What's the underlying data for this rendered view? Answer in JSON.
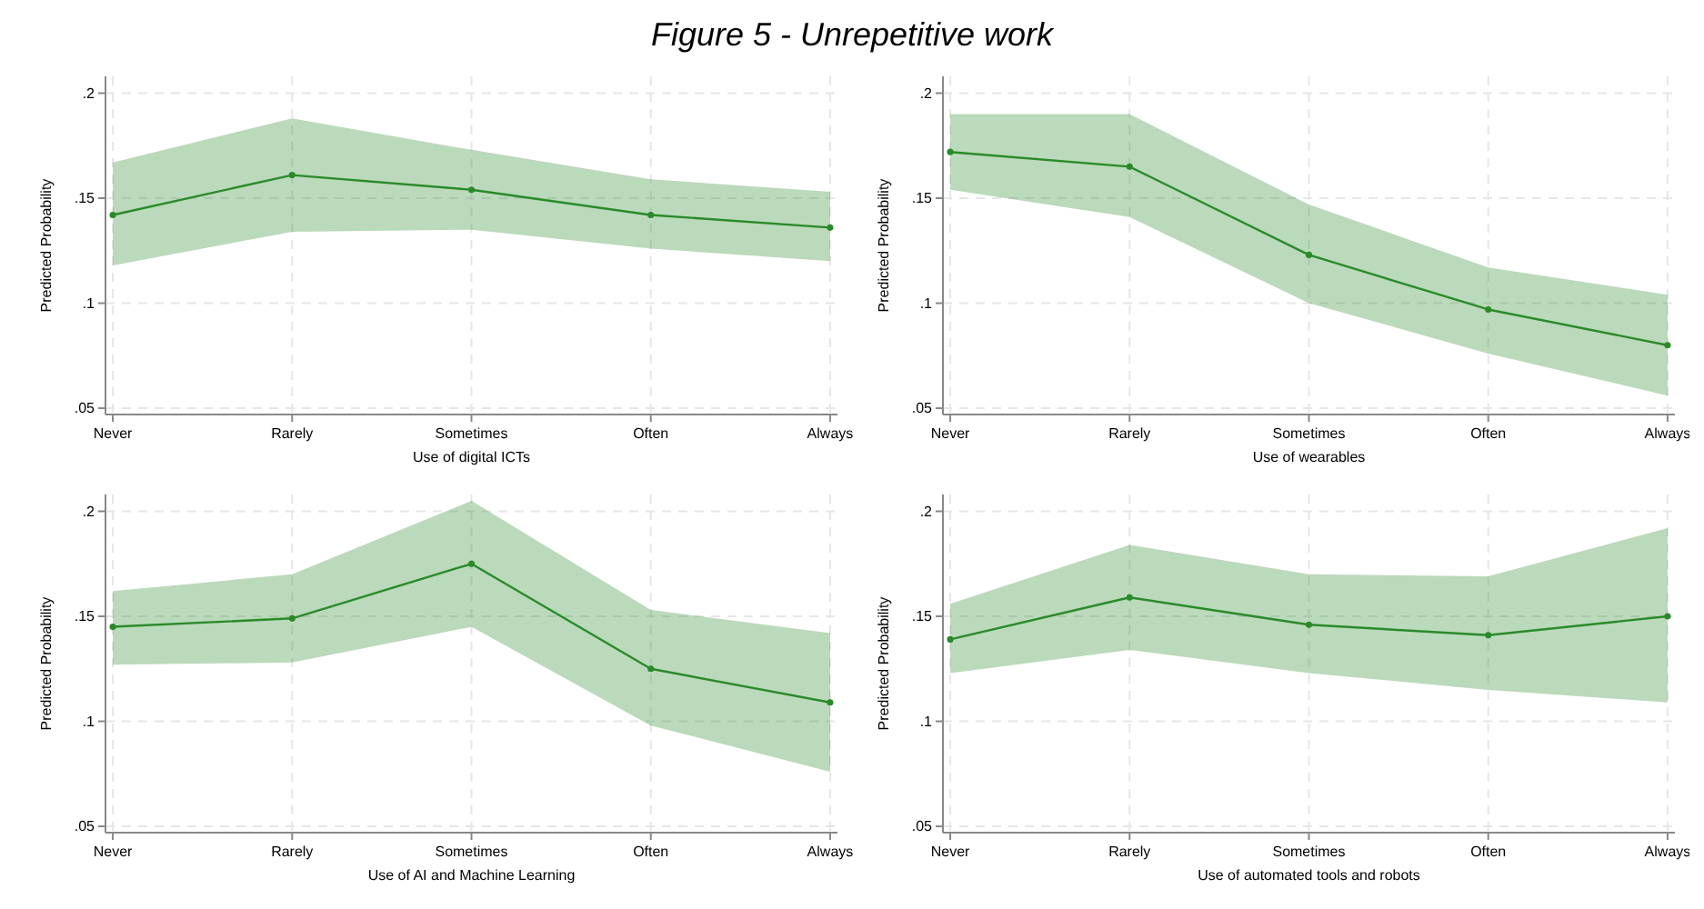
{
  "chart_data": [
    {
      "type": "line",
      "title": "Figure 5 - Unrepetitive work",
      "xlabel": "Use of digital ICTs",
      "ylabel": "Predicted Probability",
      "categories": [
        "Never",
        "Rarely",
        "Sometimes",
        "Often",
        "Always"
      ],
      "series": [
        {
          "color": "#2a8a2a",
          "values": [
            0.142,
            0.161,
            0.154,
            0.142,
            0.136
          ],
          "lower": [
            0.118,
            0.134,
            0.135,
            0.126,
            0.12
          ],
          "upper": [
            0.167,
            0.188,
            0.173,
            0.159,
            0.153
          ]
        }
      ],
      "ylim": [
        0.047,
        0.208
      ],
      "yticks": [
        {
          "value": 0.05,
          "label": ".05"
        },
        {
          "value": 0.1,
          "label": ".1"
        },
        {
          "value": 0.15,
          "label": ".15"
        },
        {
          "value": 0.2,
          "label": ".2"
        }
      ],
      "grid": true,
      "marker": "circle",
      "line_style": "solid"
    },
    {
      "type": "line",
      "xlabel": "Use of wearables",
      "ylabel": "Predicted Probability",
      "categories": [
        "Never",
        "Rarely",
        "Sometimes",
        "Often",
        "Always"
      ],
      "series": [
        {
          "color": "#2a8a2a",
          "values": [
            0.172,
            0.165,
            0.123,
            0.097,
            0.08
          ],
          "lower": [
            0.154,
            0.141,
            0.1,
            0.076,
            0.056
          ],
          "upper": [
            0.19,
            0.19,
            0.147,
            0.117,
            0.104
          ]
        }
      ],
      "ylim": [
        0.047,
        0.208
      ],
      "yticks": [
        {
          "value": 0.05,
          "label": ".05"
        },
        {
          "value": 0.1,
          "label": ".1"
        },
        {
          "value": 0.15,
          "label": ".15"
        },
        {
          "value": 0.2,
          "label": ".2"
        }
      ],
      "grid": true,
      "marker": "circle",
      "line_style": "solid"
    },
    {
      "type": "line",
      "xlabel": "Use of AI and Machine Learning",
      "ylabel": "Predicted Probability",
      "categories": [
        "Never",
        "Rarely",
        "Sometimes",
        "Often",
        "Always"
      ],
      "series": [
        {
          "color": "#2a8a2a",
          "values": [
            0.145,
            0.149,
            0.175,
            0.125,
            0.109
          ],
          "lower": [
            0.127,
            0.128,
            0.145,
            0.098,
            0.076
          ],
          "upper": [
            0.162,
            0.17,
            0.205,
            0.153,
            0.142
          ]
        }
      ],
      "ylim": [
        0.047,
        0.208
      ],
      "yticks": [
        {
          "value": 0.05,
          "label": ".05"
        },
        {
          "value": 0.1,
          "label": ".1"
        },
        {
          "value": 0.15,
          "label": ".15"
        },
        {
          "value": 0.2,
          "label": ".2"
        }
      ],
      "grid": true,
      "marker": "circle",
      "line_style": "solid"
    },
    {
      "type": "line",
      "xlabel": "Use of automated tools and robots",
      "ylabel": "Predicted Probability",
      "categories": [
        "Never",
        "Rarely",
        "Sometimes",
        "Often",
        "Always"
      ],
      "series": [
        {
          "color": "#2a8a2a",
          "values": [
            0.139,
            0.159,
            0.146,
            0.141,
            0.15
          ],
          "lower": [
            0.123,
            0.134,
            0.123,
            0.115,
            0.109
          ],
          "upper": [
            0.156,
            0.184,
            0.17,
            0.169,
            0.192
          ]
        }
      ],
      "ylim": [
        0.047,
        0.208
      ],
      "yticks": [
        {
          "value": 0.05,
          "label": ".05"
        },
        {
          "value": 0.1,
          "label": ".1"
        },
        {
          "value": 0.15,
          "label": ".15"
        },
        {
          "value": 0.2,
          "label": ".2"
        }
      ],
      "grid": true,
      "marker": "circle",
      "line_style": "solid"
    }
  ]
}
